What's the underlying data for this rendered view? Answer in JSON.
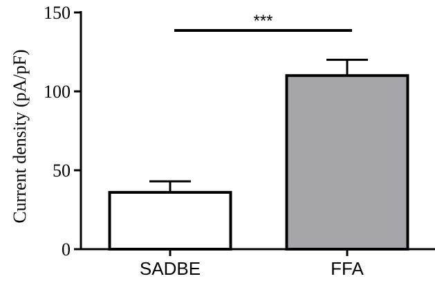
{
  "chart_data": {
    "type": "bar",
    "categories": [
      "SADBE",
      "FFA"
    ],
    "values": [
      36,
      110
    ],
    "errors": [
      7,
      10
    ],
    "bar_colors": [
      "#ffffff",
      "#a5a5aa"
    ],
    "ylabel": "Current density (pA/pF)",
    "ylim": [
      0,
      150
    ],
    "yticks": [
      0,
      50,
      100,
      150
    ],
    "grid": false,
    "significance": {
      "label": "***",
      "between": [
        "SADBE",
        "FFA"
      ]
    }
  }
}
